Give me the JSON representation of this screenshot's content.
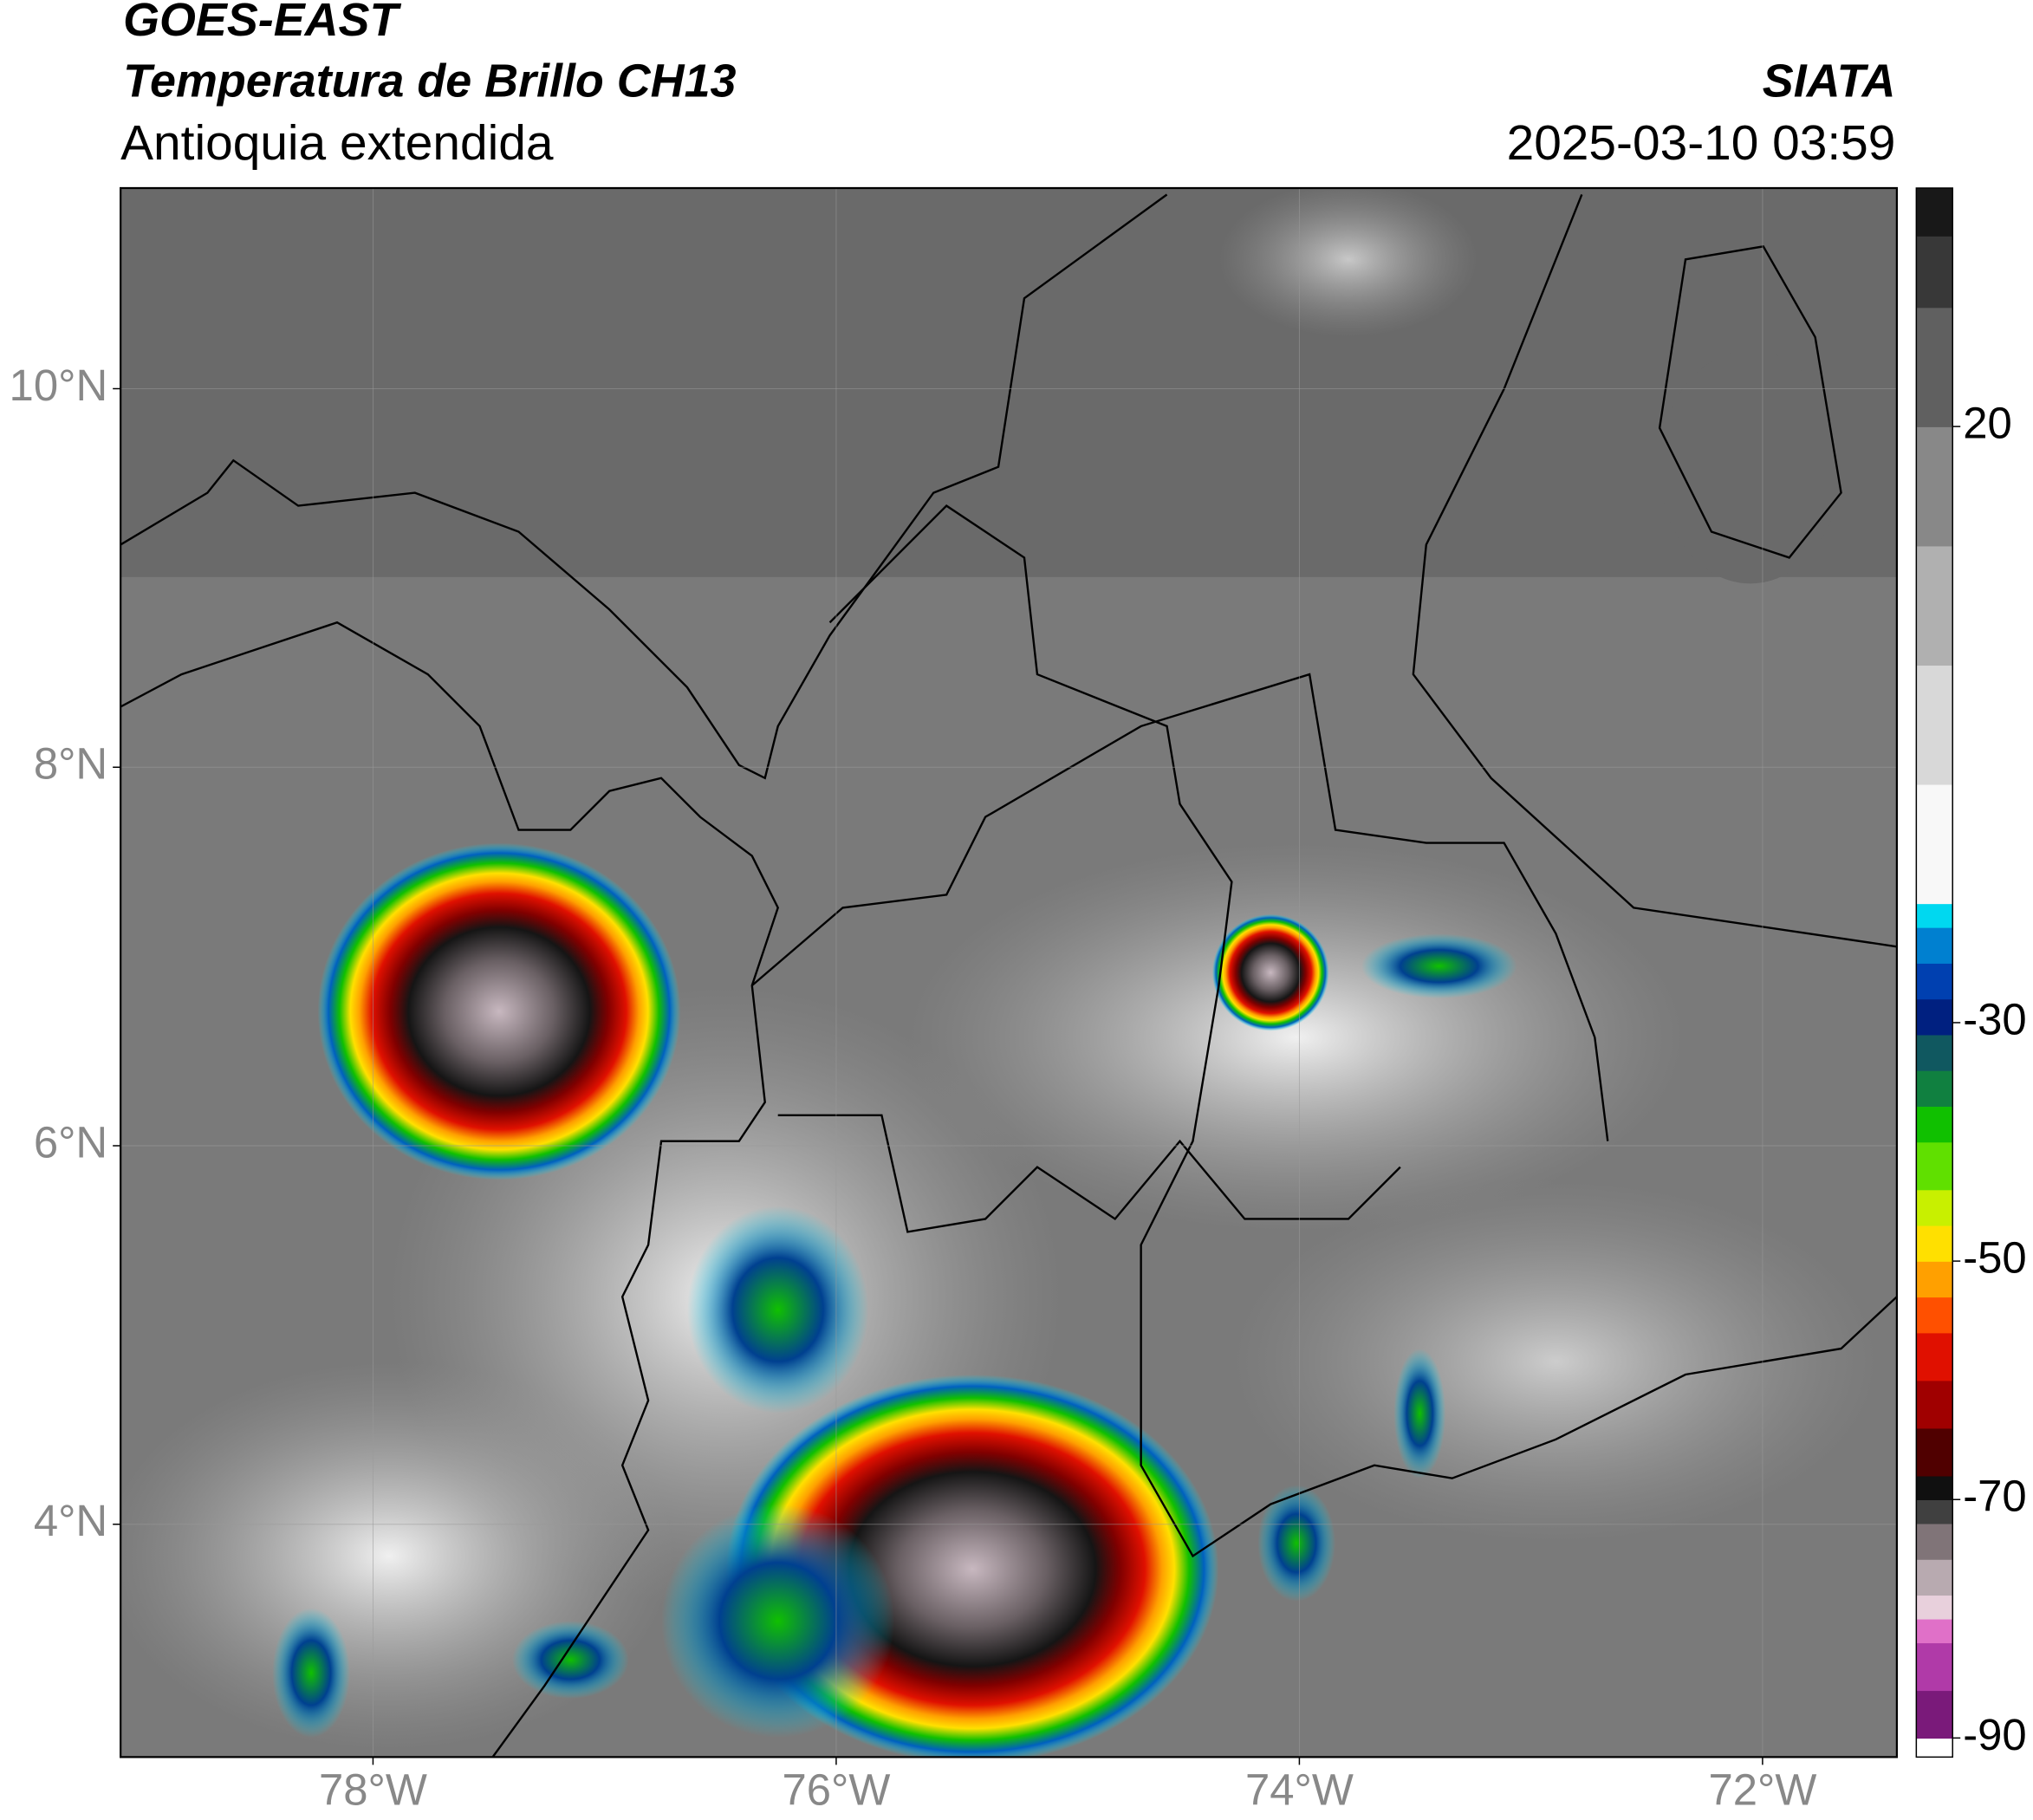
{
  "header": {
    "title_line1": "GOES-EAST",
    "title_line2": "Temperatura de Brillo CH13",
    "subtitle": "Antioquia extendida",
    "source": "SIATA",
    "datetime": "2025-03-10 03:59"
  },
  "map": {
    "lonlim": [
      -79.09,
      -71.42
    ],
    "latlim": [
      2.77,
      11.06
    ],
    "lon_ticks": [
      {
        "value": -78,
        "label": "78°W"
      },
      {
        "value": -76,
        "label": "76°W"
      },
      {
        "value": -74,
        "label": "74°W"
      },
      {
        "value": -72,
        "label": "72°W"
      }
    ],
    "lat_ticks": [
      {
        "value": 10,
        "label": "10°N"
      },
      {
        "value": 8,
        "label": "8°N"
      },
      {
        "value": 6,
        "label": "6°N"
      },
      {
        "value": 4,
        "label": "4°N"
      }
    ],
    "grid": true
  },
  "colorbar": {
    "lim": [
      -91.6,
      40
    ],
    "ticks": [
      20,
      -30,
      -50,
      -70,
      -90
    ],
    "stops": [
      {
        "value": -91.6,
        "color": "#ffffff"
      },
      {
        "value": -90,
        "color": "#7a1a7a"
      },
      {
        "value": -86,
        "color": "#b03aa8"
      },
      {
        "value": -82,
        "color": "#e070c8"
      },
      {
        "value": -80,
        "color": "#e8d0dc"
      },
      {
        "value": -78,
        "color": "#b8aab0"
      },
      {
        "value": -75,
        "color": "#807478"
      },
      {
        "value": -72,
        "color": "#404040"
      },
      {
        "value": -70,
        "color": "#101010"
      },
      {
        "value": -68,
        "color": "#500000"
      },
      {
        "value": -64,
        "color": "#a00000"
      },
      {
        "value": -60,
        "color": "#e01000"
      },
      {
        "value": -56,
        "color": "#ff5000"
      },
      {
        "value": -53,
        "color": "#ffa000"
      },
      {
        "value": -50,
        "color": "#ffe000"
      },
      {
        "value": -47,
        "color": "#c8f000"
      },
      {
        "value": -44,
        "color": "#60e000"
      },
      {
        "value": -40,
        "color": "#10c000"
      },
      {
        "value": -37,
        "color": "#108040"
      },
      {
        "value": -34,
        "color": "#105860"
      },
      {
        "value": -31,
        "color": "#002080"
      },
      {
        "value": -28,
        "color": "#0040b0"
      },
      {
        "value": -25,
        "color": "#0080d0"
      },
      {
        "value": -22,
        "color": "#00d8f0"
      },
      {
        "value": -20,
        "color": "#f8f8f8"
      },
      {
        "value": -10,
        "color": "#d8d8d8"
      },
      {
        "value": 0,
        "color": "#b0b0b0"
      },
      {
        "value": 10,
        "color": "#888888"
      },
      {
        "value": 20,
        "color": "#606060"
      },
      {
        "value": 30,
        "color": "#383838"
      },
      {
        "value": 36,
        "color": "#181818"
      }
    ]
  }
}
